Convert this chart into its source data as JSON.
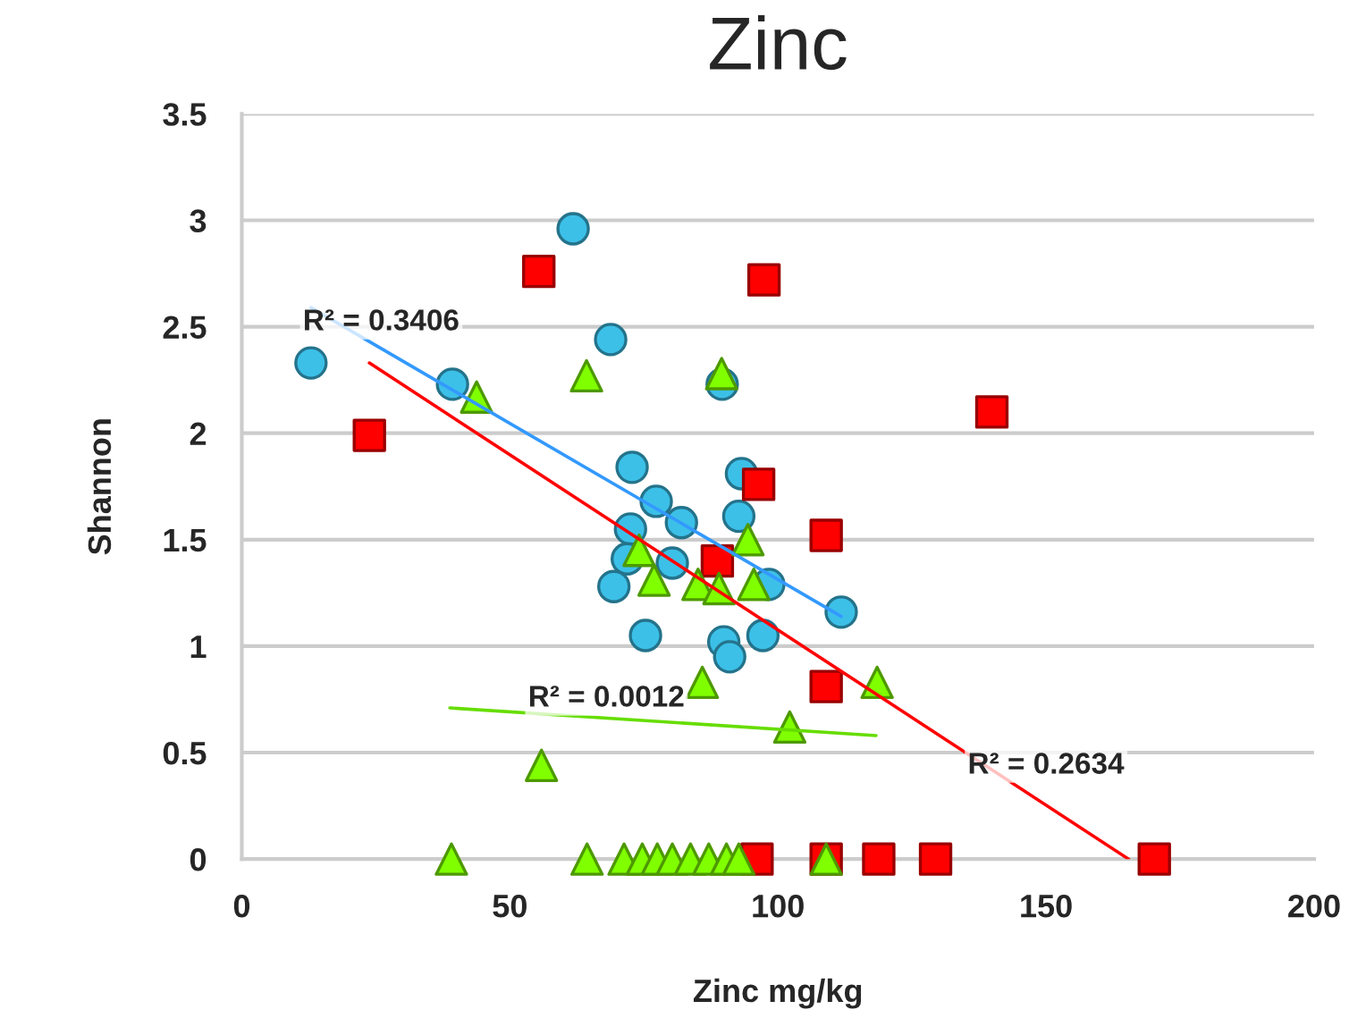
{
  "chart_data": {
    "type": "scatter",
    "title": "Zinc",
    "xlabel": "Zinc mg/kg",
    "ylabel": "Shannon",
    "xlim": [
      0,
      200
    ],
    "xticks": [
      0,
      50,
      100,
      150,
      200
    ],
    "ylim": [
      0,
      3.5
    ],
    "yticks": [
      0,
      0.5,
      1,
      1.5,
      2,
      2.5,
      3,
      3.5
    ],
    "grid": "y",
    "series": [
      {
        "marker": "circle",
        "color": "#3cc0e8",
        "x": [
          12.9,
          61.8,
          68.8,
          39.3,
          89.6,
          72.8,
          77.3,
          82.0,
          93.2,
          92.7,
          72.5,
          71.9,
          80.3,
          69.4,
          98.3,
          75.3,
          89.9,
          91.0,
          97.2,
          111.8
        ],
        "values": [
          2.33,
          2.96,
          2.44,
          2.23,
          2.23,
          1.84,
          1.68,
          1.58,
          1.81,
          1.61,
          1.55,
          1.41,
          1.39,
          1.28,
          1.29,
          1.05,
          1.02,
          0.95,
          1.05,
          1.16
        ]
      },
      {
        "marker": "square",
        "color": "#ff0000",
        "x": [
          55.4,
          97.4,
          23.8,
          96.4,
          88.7,
          109.0,
          139.9,
          109.0,
          96.1,
          109.0,
          118.8,
          129.4,
          170.2
        ],
        "values": [
          2.76,
          2.72,
          1.99,
          1.76,
          1.4,
          1.52,
          2.1,
          0.81,
          0,
          0,
          0,
          0,
          0
        ]
      },
      {
        "marker": "triangle",
        "color": "#80ff00",
        "x": [
          43.8,
          64.3,
          89.5,
          94.4,
          74.1,
          76.9,
          85.1,
          89.0,
          95.5,
          85.9,
          118.5,
          102.2,
          55.9,
          39.1,
          64.4,
          71.3,
          74.7,
          77.5,
          80.3,
          83.7,
          87.1,
          90.4,
          92.7,
          109.0
        ],
        "values": [
          2.17,
          2.27,
          2.28,
          1.5,
          1.45,
          1.31,
          1.29,
          1.27,
          1.29,
          0.83,
          0.83,
          0.62,
          0.44,
          0,
          0,
          0,
          0,
          0,
          0,
          0,
          0,
          0,
          0,
          0
        ]
      },
      {
        "type": "line",
        "color": "#3399ff",
        "x": [
          12.9,
          111.8
        ],
        "values": [
          2.59,
          1.14
        ]
      },
      {
        "type": "line",
        "color": "#ff0000",
        "x": [
          23.8,
          165.4
        ],
        "values": [
          2.33,
          0
        ]
      },
      {
        "type": "line",
        "color": "#66dd00",
        "x": [
          38.8,
          118.3
        ],
        "values": [
          0.71,
          0.58
        ]
      }
    ],
    "annotations": [
      "R² = 0.3406",
      "R² = 0.0012",
      "R² = 0.2634"
    ]
  }
}
